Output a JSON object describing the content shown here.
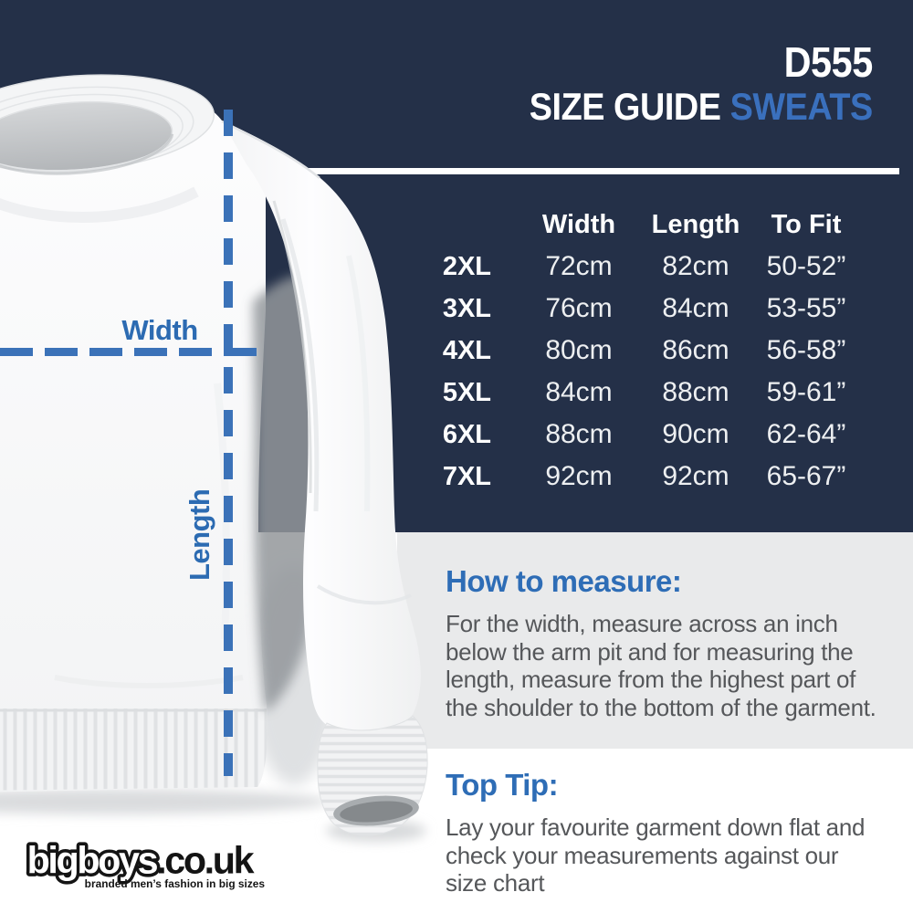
{
  "header": {
    "brand": "D555",
    "title_white": "SIZE GUIDE",
    "title_accent": "SWEATS"
  },
  "table": {
    "headers": [
      "Width",
      "Length",
      "To Fit"
    ],
    "rows": [
      {
        "size": "2XL",
        "width": "72cm",
        "length": "82cm",
        "to_fit": "50-52”"
      },
      {
        "size": "3XL",
        "width": "76cm",
        "length": "84cm",
        "to_fit": "53-55”"
      },
      {
        "size": "4XL",
        "width": "80cm",
        "length": "86cm",
        "to_fit": "56-58”"
      },
      {
        "size": "5XL",
        "width": "84cm",
        "length": "88cm",
        "to_fit": "59-61”"
      },
      {
        "size": "6XL",
        "width": "88cm",
        "length": "90cm",
        "to_fit": "62-64”"
      },
      {
        "size": "7XL",
        "width": "92cm",
        "length": "92cm",
        "to_fit": "65-67”"
      }
    ]
  },
  "measure_labels": {
    "width": "Width",
    "length": "Length"
  },
  "how_to_measure": {
    "heading": "How to measure:",
    "body": "For the width, measure across an inch below the arm pit and for measuring the length, measure from the highest part of the shoulder to the bottom of the garment."
  },
  "top_tip": {
    "heading": "Top Tip:",
    "body": "Lay your favourite garment down flat and check your measurements against our size chart"
  },
  "logo": {
    "name": "bigboys",
    "suffix": ".co.uk",
    "tagline": "branded men’s fashion in big sizes"
  },
  "colors": {
    "navy": "#243048",
    "accent_blue": "#3a70bd",
    "heading_blue": "#2e6db6",
    "dash_blue": "#3b72b8",
    "panel_gray": "#e9eaeb",
    "body_text_gray": "#55575a"
  }
}
